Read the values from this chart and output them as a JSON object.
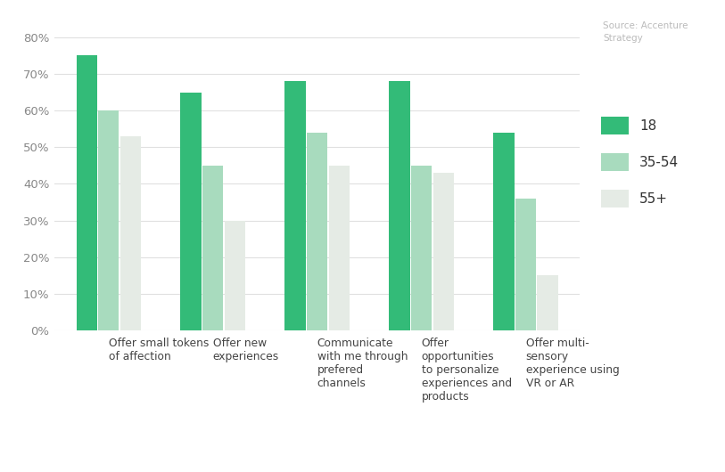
{
  "categories": [
    "Offer small tokens\nof affection",
    "Offer new\nexperiences",
    "Communicate\nwith me through\nprefered\nchannels",
    "Offer\nopportunities\nto personalize\nexperiences and\nproducts",
    "Offer multi-\nsensory\nexperience using\nVR or AR"
  ],
  "series": {
    "18": [
      0.75,
      0.65,
      0.68,
      0.68,
      0.54
    ],
    "35-54": [
      0.6,
      0.45,
      0.54,
      0.45,
      0.36
    ],
    "55+": [
      0.53,
      0.3,
      0.45,
      0.43,
      0.15
    ]
  },
  "colors": {
    "18": "#33BB78",
    "35-54": "#A8DBBE",
    "55+": "#E5EBE5"
  },
  "legend_labels": [
    "18",
    "35-54",
    "55+"
  ],
  "ylim": [
    0,
    0.85
  ],
  "yticks": [
    0.0,
    0.1,
    0.2,
    0.3,
    0.4,
    0.5,
    0.6,
    0.7,
    0.8
  ],
  "source_text": "Source: Accenture\nStrategy",
  "background_color": "#ffffff",
  "bar_width": 0.2,
  "bar_gap": 0.01
}
